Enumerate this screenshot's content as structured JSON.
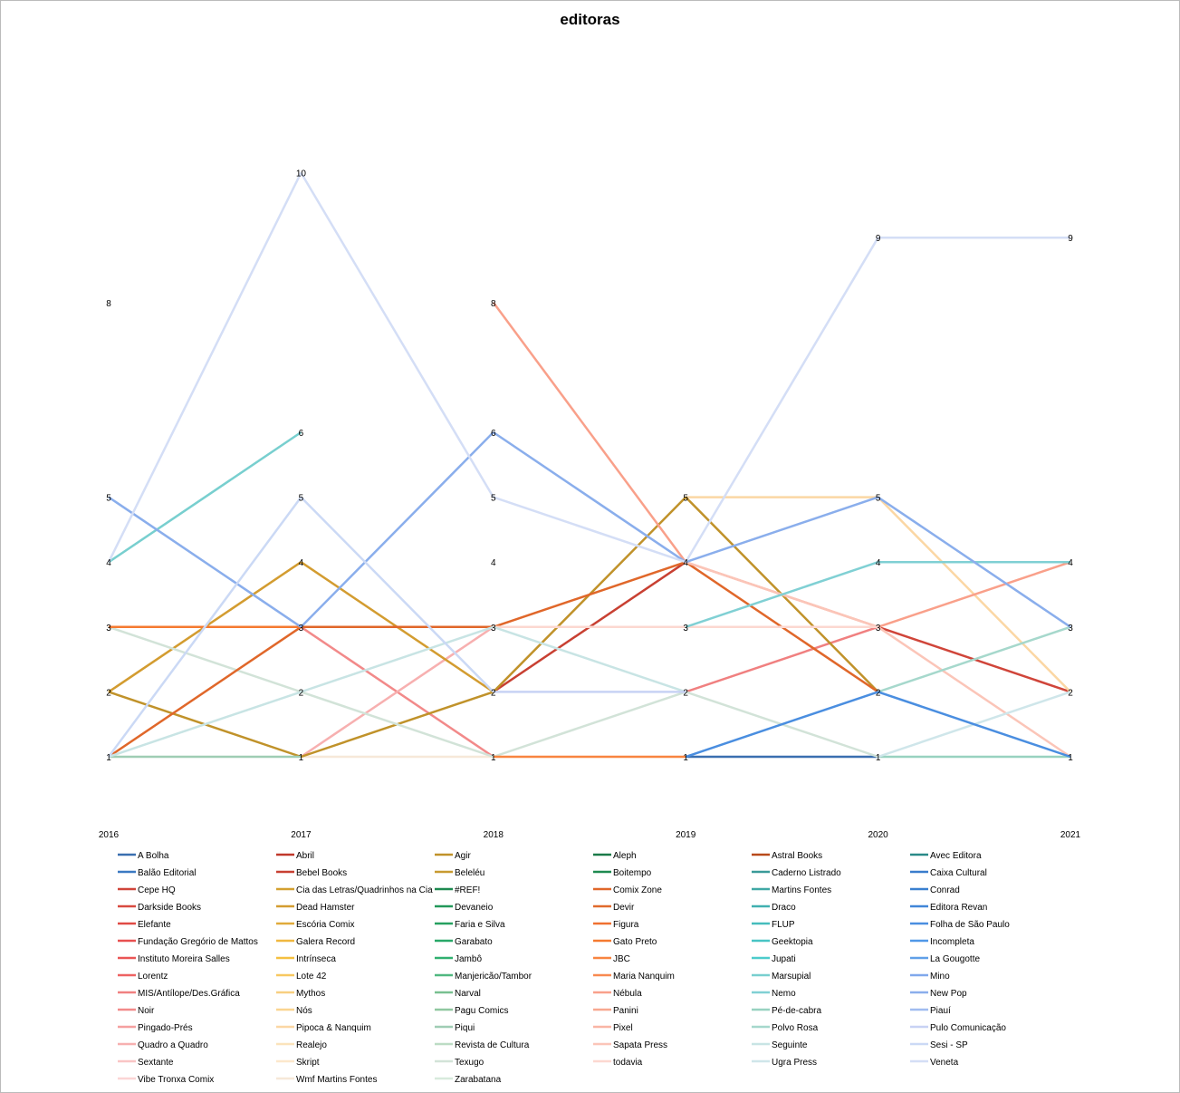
{
  "chart_data": {
    "type": "line",
    "title": "editoras",
    "xlabel": "",
    "ylabel": "",
    "x": [
      "2016",
      "2017",
      "2018",
      "2019",
      "2020",
      "2021"
    ],
    "ylim": [
      0,
      10
    ],
    "grid": false,
    "legend_placement": "bottom",
    "series": [
      {
        "name": "A Bolha",
        "color": "#3a6fb0",
        "values": [
          null,
          null,
          null,
          1,
          1,
          null
        ]
      },
      {
        "name": "Balão Editorial",
        "color": "#3b79c2",
        "values": [
          null,
          null,
          null,
          null,
          null,
          null
        ]
      },
      {
        "name": "Cepe HQ",
        "color": "#d0453a",
        "values": [
          null,
          null,
          null,
          null,
          3,
          2
        ]
      },
      {
        "name": "Darkside Books",
        "color": "#d84a40",
        "values": [
          8,
          null,
          null,
          null,
          null,
          null
        ]
      },
      {
        "name": "Elefante",
        "color": "#e04a44",
        "values": [
          null,
          null,
          null,
          null,
          null,
          null
        ]
      },
      {
        "name": "Fundação Gregório de Mattos",
        "color": "#e85050",
        "values": [
          null,
          null,
          null,
          null,
          null,
          null
        ]
      },
      {
        "name": "Instituto Moreira Salles",
        "color": "#ea5555",
        "values": [
          null,
          null,
          null,
          null,
          null,
          null
        ]
      },
      {
        "name": "Lorentz",
        "color": "#ee6262",
        "values": [
          null,
          null,
          null,
          null,
          null,
          null
        ]
      },
      {
        "name": "MIS/Antílope/Des.Gráfica",
        "color": "#f08080",
        "values": [
          null,
          null,
          null,
          2,
          3,
          null
        ]
      },
      {
        "name": "Noir",
        "color": "#f28a8a",
        "values": [
          null,
          3,
          1,
          null,
          null,
          null
        ]
      },
      {
        "name": "Pingado-Prés",
        "color": "#f5a0a0",
        "values": [
          null,
          null,
          null,
          null,
          null,
          null
        ]
      },
      {
        "name": "Quadro a Quadro",
        "color": "#f7b0b0",
        "values": [
          null,
          1,
          3,
          null,
          null,
          null
        ]
      },
      {
        "name": "Sextante",
        "color": "#f9c5c5",
        "values": [
          null,
          null,
          null,
          null,
          null,
          null
        ]
      },
      {
        "name": "Vibe Tronxa Comix",
        "color": "#fbd5d5",
        "values": [
          null,
          null,
          null,
          null,
          null,
          null
        ]
      },
      {
        "name": "Abril",
        "color": "#c0392b",
        "values": [
          null,
          null,
          null,
          null,
          null,
          null
        ]
      },
      {
        "name": "Bebel Books",
        "color": "#c84032",
        "values": [
          null,
          null,
          2,
          4,
          null,
          null
        ]
      },
      {
        "name": "Cia das Letras/Quadrinhos na Cia",
        "color": "#d4a030",
        "values": [
          null,
          null,
          null,
          null,
          null,
          null
        ]
      },
      {
        "name": "Dead Hamster",
        "color": "#d39c30",
        "values": [
          2,
          4,
          2,
          null,
          null,
          null
        ]
      },
      {
        "name": "Escória Comix",
        "color": "#e0aa3a",
        "values": [
          null,
          null,
          null,
          null,
          null,
          null
        ]
      },
      {
        "name": "Galera Record",
        "color": "#f0b840",
        "values": [
          null,
          null,
          null,
          null,
          null,
          null
        ]
      },
      {
        "name": "Intrínseca",
        "color": "#f5c040",
        "values": [
          null,
          null,
          4,
          null,
          null,
          null
        ]
      },
      {
        "name": "Lote 42",
        "color": "#f7c860",
        "values": [
          null,
          null,
          null,
          null,
          null,
          null
        ]
      },
      {
        "name": "Mythos",
        "color": "#f8cf80",
        "values": [
          null,
          null,
          null,
          null,
          null,
          null
        ]
      },
      {
        "name": "Nós",
        "color": "#fad590",
        "values": [
          null,
          null,
          null,
          null,
          null,
          null
        ]
      },
      {
        "name": "Pipoca & Nanquim",
        "color": "#fbd7a4",
        "values": [
          null,
          null,
          null,
          5,
          5,
          2
        ]
      },
      {
        "name": "Realejo",
        "color": "#fbe3bb",
        "values": [
          null,
          null,
          null,
          null,
          null,
          null
        ]
      },
      {
        "name": "Skript",
        "color": "#fce8cc",
        "values": [
          null,
          null,
          null,
          null,
          null,
          null
        ]
      },
      {
        "name": "Wmf Martins Fontes",
        "color": "#f6e8d8",
        "values": [
          null,
          1,
          1,
          null,
          null,
          null
        ]
      },
      {
        "name": "Agir",
        "color": "#c0922a",
        "values": [
          2,
          1,
          2,
          5,
          2,
          null
        ]
      },
      {
        "name": "Beleléu",
        "color": "#c89a30",
        "values": [
          null,
          null,
          null,
          null,
          null,
          null
        ]
      },
      {
        "name": "#REF!",
        "color": "#1e8a50",
        "values": [
          null,
          null,
          null,
          null,
          null,
          null
        ]
      },
      {
        "name": "Devaneio",
        "color": "#22985a",
        "values": [
          null,
          null,
          null,
          null,
          null,
          null
        ]
      },
      {
        "name": "Faria e Silva",
        "color": "#26a060",
        "values": [
          null,
          null,
          null,
          null,
          null,
          null
        ]
      },
      {
        "name": "Garabato",
        "color": "#28a868",
        "values": [
          null,
          null,
          null,
          null,
          null,
          null
        ]
      },
      {
        "name": "Jambô",
        "color": "#30b070",
        "values": [
          null,
          null,
          null,
          null,
          null,
          null
        ]
      },
      {
        "name": "Manjericão/Tambor",
        "color": "#50b880",
        "values": [
          null,
          null,
          null,
          null,
          null,
          null
        ]
      },
      {
        "name": "Narval",
        "color": "#78c090",
        "values": [
          null,
          null,
          null,
          null,
          null,
          null
        ]
      },
      {
        "name": "Pagu Comics",
        "color": "#90c8a0",
        "values": [
          null,
          null,
          null,
          null,
          null,
          null
        ]
      },
      {
        "name": "Piqui",
        "color": "#9fcdb4",
        "values": [
          1,
          1,
          null,
          null,
          null,
          null
        ]
      },
      {
        "name": "Revista de Cultura",
        "color": "#bcdcc4",
        "values": [
          null,
          null,
          null,
          null,
          null,
          null
        ]
      },
      {
        "name": "Texugo",
        "color": "#d2e3d8",
        "values": [
          3,
          2,
          1,
          2,
          1,
          null
        ]
      },
      {
        "name": "Zarabatana",
        "color": "#d8eadc",
        "values": [
          null,
          null,
          null,
          null,
          null,
          null
        ]
      },
      {
        "name": "Aleph",
        "color": "#1a7a48",
        "values": [
          null,
          null,
          null,
          null,
          null,
          null
        ]
      },
      {
        "name": "Boitempo",
        "color": "#1e8a50",
        "values": [
          null,
          null,
          null,
          null,
          null,
          null
        ]
      },
      {
        "name": "Comix Zone",
        "color": "#e0672a",
        "values": [
          1,
          3,
          3,
          4,
          2,
          null
        ]
      },
      {
        "name": "Devir",
        "color": "#e06a2c",
        "values": [
          null,
          null,
          null,
          null,
          null,
          null
        ]
      },
      {
        "name": "Figura",
        "color": "#ef7030",
        "values": [
          null,
          null,
          null,
          null,
          null,
          null
        ]
      },
      {
        "name": "Gato Preto",
        "color": "#f57a30",
        "values": [
          3,
          3,
          null,
          null,
          null,
          null
        ]
      },
      {
        "name": "JBC",
        "color": "#f88540",
        "values": [
          null,
          null,
          1,
          1,
          null,
          null
        ]
      },
      {
        "name": "Maria Nanquim",
        "color": "#f88a50",
        "values": [
          null,
          null,
          null,
          null,
          null,
          null
        ]
      },
      {
        "name": "Nébula",
        "color": "#f9a08a",
        "values": [
          null,
          null,
          8,
          4,
          3,
          4
        ]
      },
      {
        "name": "Panini",
        "color": "#f8a890",
        "values": [
          null,
          null,
          null,
          null,
          null,
          null
        ]
      },
      {
        "name": "Pixel",
        "color": "#f9b5a5",
        "values": [
          null,
          null,
          null,
          null,
          null,
          null
        ]
      },
      {
        "name": "Sapata Press",
        "color": "#fbc5b8",
        "values": [
          null,
          null,
          null,
          4,
          3,
          1
        ]
      },
      {
        "name": "todavia",
        "color": "#fcd8d0",
        "values": [
          null,
          null,
          3,
          3,
          3,
          null
        ]
      },
      {
        "name": "Astral Books",
        "color": "#b84a1a",
        "values": [
          null,
          null,
          null,
          null,
          null,
          null
        ]
      },
      {
        "name": "Caderno Listrado",
        "color": "#3a9a98",
        "values": [
          null,
          null,
          null,
          null,
          null,
          null
        ]
      },
      {
        "name": "Martins Fontes",
        "color": "#40a8a5",
        "values": [
          null,
          null,
          null,
          null,
          null,
          null
        ]
      },
      {
        "name": "Draco",
        "color": "#40b0b0",
        "values": [
          null,
          null,
          null,
          null,
          null,
          null
        ]
      },
      {
        "name": "FLUP",
        "color": "#45bcbc",
        "values": [
          null,
          null,
          null,
          null,
          null,
          null
        ]
      },
      {
        "name": "Geektopia",
        "color": "#48c4c4",
        "values": [
          null,
          null,
          null,
          null,
          null,
          null
        ]
      },
      {
        "name": "Jupati",
        "color": "#4ccccc",
        "values": [
          null,
          null,
          null,
          null,
          null,
          null
        ]
      },
      {
        "name": "Marsupial",
        "color": "#78cfcf",
        "values": [
          4,
          6,
          null,
          null,
          null,
          null
        ]
      },
      {
        "name": "Nemo",
        "color": "#80d0d4",
        "values": [
          null,
          null,
          null,
          3,
          4,
          4
        ]
      },
      {
        "name": "Pé-de-cabra",
        "color": "#98d2c0",
        "values": [
          null,
          null,
          null,
          null,
          1,
          1
        ]
      },
      {
        "name": "Polvo Rosa",
        "color": "#a6d8cc",
        "values": [
          null,
          null,
          null,
          null,
          2,
          3
        ]
      },
      {
        "name": "Seguinte",
        "color": "#c8e4e4",
        "values": [
          1,
          2,
          3,
          2,
          null,
          null
        ]
      },
      {
        "name": "Ugra Press",
        "color": "#cfe6ea",
        "values": [
          null,
          null,
          null,
          null,
          1,
          2
        ]
      },
      {
        "name": "Avec Editora",
        "color": "#2a8a88",
        "values": [
          null,
          null,
          null,
          null,
          null,
          null
        ]
      },
      {
        "name": "Caixa Cultural",
        "color": "#3a7ccc",
        "values": [
          null,
          null,
          null,
          null,
          null,
          null
        ]
      },
      {
        "name": "Conrad",
        "color": "#3a80d0",
        "values": [
          null,
          null,
          null,
          null,
          null,
          null
        ]
      },
      {
        "name": "Editora Revan",
        "color": "#4086d8",
        "values": [
          null,
          null,
          null,
          null,
          null,
          null
        ]
      },
      {
        "name": "Folha de São Paulo",
        "color": "#4a8ee0",
        "values": [
          null,
          null,
          null,
          1,
          2,
          1
        ]
      },
      {
        "name": "Incompleta",
        "color": "#5098e8",
        "values": [
          null,
          null,
          null,
          null,
          null,
          null
        ]
      },
      {
        "name": "La Gougotte",
        "color": "#60a0e8",
        "values": [
          null,
          null,
          null,
          null,
          null,
          null
        ]
      },
      {
        "name": "Mino",
        "color": "#80a8ec",
        "values": [
          null,
          null,
          null,
          null,
          null,
          null
        ]
      },
      {
        "name": "New Pop",
        "color": "#8aaeec",
        "values": [
          5,
          3,
          6,
          4,
          5,
          3
        ]
      },
      {
        "name": "Piauí",
        "color": "#a0bcf0",
        "values": [
          null,
          null,
          null,
          null,
          null,
          null
        ]
      },
      {
        "name": "Pulo Comunicação",
        "color": "#c8d2f4",
        "values": [
          null,
          null,
          2,
          2,
          null,
          null
        ]
      },
      {
        "name": "Sesi - SP",
        "color": "#cbd9f5",
        "values": [
          1,
          5,
          2,
          null,
          null,
          null
        ]
      },
      {
        "name": "Veneta",
        "color": "#d4def6",
        "values": [
          4,
          10,
          5,
          4,
          9,
          9
        ]
      }
    ]
  }
}
